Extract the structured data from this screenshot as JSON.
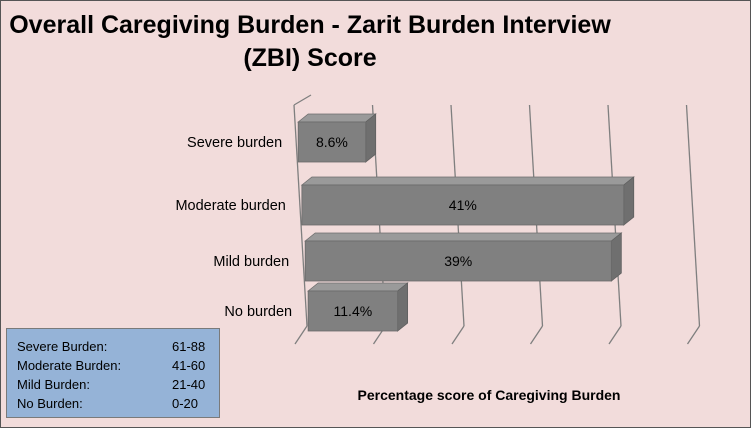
{
  "chart_data": {
    "type": "bar",
    "orientation": "horizontal",
    "title": "Overall Caregiving Burden - Zarit Burden Interview (ZBI) Score",
    "xlabel": "Percentage score of Caregiving Burden",
    "ylabel": "",
    "categories": [
      "Severe burden",
      "Moderate burden",
      "Mild burden",
      "No burden"
    ],
    "values": [
      8.6,
      41,
      39,
      11.4
    ],
    "data_labels": [
      "8.6%",
      "41%",
      "39%",
      "11.4%"
    ],
    "xlim": [
      0,
      50
    ],
    "grid": true,
    "colors": {
      "bar": "#808080",
      "background": "#f2dcdb",
      "gridline": "#7f7f7f"
    }
  },
  "legend": {
    "items": [
      {
        "name": "Severe Burden:",
        "range": "61-88"
      },
      {
        "name": "Moderate Burden:",
        "range": "41-60"
      },
      {
        "name": "Mild Burden:",
        "range": "21-40"
      },
      {
        "name": "No Burden:",
        "range": "0-20"
      }
    ],
    "background": "#95b3d7"
  }
}
